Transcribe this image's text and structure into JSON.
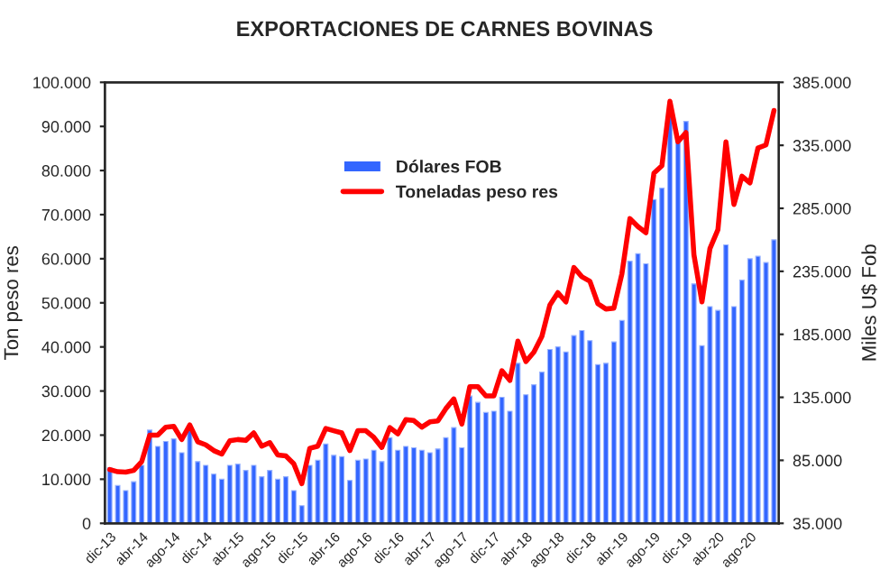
{
  "chart_data": {
    "type": "bar",
    "title": "EXPORTACIONES DE CARNES BOVINAS",
    "ylabel": "Ton peso res",
    "y2label": "Miles U$ Fob",
    "categories": [
      "dic-13",
      null,
      null,
      null,
      "abr-14",
      null,
      null,
      null,
      "ago-14",
      null,
      null,
      null,
      "dic-14",
      null,
      null,
      null,
      "abr-15",
      null,
      null,
      null,
      "ago-15",
      null,
      null,
      null,
      "dic-15",
      null,
      null,
      null,
      "abr-16",
      null,
      null,
      null,
      "ago-16",
      null,
      null,
      null,
      "dic-16",
      null,
      null,
      null,
      "abr-17",
      null,
      null,
      null,
      "ago-17",
      null,
      null,
      null,
      "dic-17",
      null,
      null,
      null,
      "abr-18",
      null,
      null,
      null,
      "ago-18",
      null,
      null,
      null,
      "dic-18",
      null,
      null,
      null,
      "abr-19",
      null,
      null,
      null,
      "ago-19",
      null,
      null,
      null,
      "dic-19",
      null,
      null,
      null,
      "abr-20",
      null,
      null,
      null,
      "ago-20",
      null,
      null,
      null
    ],
    "series": [
      {
        "name": "Dólares FOB",
        "axis": "y2",
        "color": "#3366ff",
        "values": [
          79000,
          65000,
          61000,
          68000,
          81000,
          109000,
          96000,
          100000,
          102000,
          91000,
          109000,
          84000,
          81000,
          74000,
          70000,
          81000,
          82000,
          77000,
          81000,
          72000,
          77000,
          70000,
          72000,
          61000,
          49000,
          81000,
          85000,
          98000,
          89000,
          88000,
          69000,
          85000,
          86000,
          93000,
          84000,
          103000,
          93000,
          96000,
          95000,
          93000,
          91000,
          94000,
          103000,
          111000,
          95000,
          136000,
          131000,
          123000,
          124000,
          135000,
          124000,
          162000,
          137000,
          145000,
          155000,
          173000,
          175000,
          171000,
          184000,
          188000,
          180000,
          161000,
          162000,
          179000,
          196000,
          243000,
          249000,
          241000,
          292000,
          301000,
          358000,
          338000,
          354000,
          225000,
          176000,
          207000,
          204000,
          256000,
          207000,
          228000,
          245000,
          247000,
          242000,
          260000
        ]
      },
      {
        "name": "Toneladas peso res",
        "type": "line",
        "color": "#ff0000",
        "values": [
          12200,
          11700,
          11600,
          12000,
          14000,
          20000,
          20000,
          21800,
          22000,
          19000,
          22300,
          18500,
          17800,
          16500,
          15700,
          18700,
          19000,
          18800,
          20500,
          17500,
          18300,
          15500,
          15300,
          13500,
          9000,
          17000,
          17500,
          21500,
          21000,
          20500,
          16500,
          21000,
          21000,
          19500,
          17200,
          21700,
          20300,
          23500,
          23300,
          21800,
          23000,
          23200,
          26000,
          28200,
          22500,
          31000,
          31000,
          28900,
          28900,
          34600,
          32400,
          41300,
          36700,
          38800,
          42400,
          49500,
          52300,
          50200,
          58000,
          55900,
          54900,
          49800,
          48600,
          48800,
          56600,
          69100,
          67300,
          65900,
          79400,
          81100,
          95700,
          86500,
          88600,
          60900,
          50200,
          62300,
          66600,
          86500,
          72300,
          78700,
          77200,
          85100,
          85800,
          93600
        ]
      }
    ],
    "ylim": [
      0,
      100000
    ],
    "yticks": [
      0,
      {
        "value": 10000,
        "label": "10.000"
      },
      {
        "value": 20000,
        "label": "20.000"
      },
      {
        "value": 30000,
        "label": "30.000"
      },
      {
        "value": 40000,
        "label": "40.000"
      },
      {
        "value": 50000,
        "label": "50.000"
      },
      {
        "value": 60000,
        "label": "60.000"
      },
      {
        "value": 70000,
        "label": "70.000"
      },
      {
        "value": 80000,
        "label": "80.000"
      },
      {
        "value": 90000,
        "label": "90.000"
      },
      {
        "value": 100000,
        "label": "100.000"
      }
    ],
    "y2lim": [
      35000,
      385000
    ],
    "y2ticks": [
      {
        "value": 35000,
        "label": "35.000"
      },
      {
        "value": 85000,
        "label": "85.000"
      },
      {
        "value": 135000,
        "label": "135.000"
      },
      {
        "value": 185000,
        "label": "185.000"
      },
      {
        "value": 235000,
        "label": "235.000"
      },
      {
        "value": 285000,
        "label": "285.000"
      },
      {
        "value": 335000,
        "label": "335.000"
      },
      {
        "value": 385000,
        "label": "385.000"
      }
    ],
    "legend": "top",
    "grid": false
  }
}
